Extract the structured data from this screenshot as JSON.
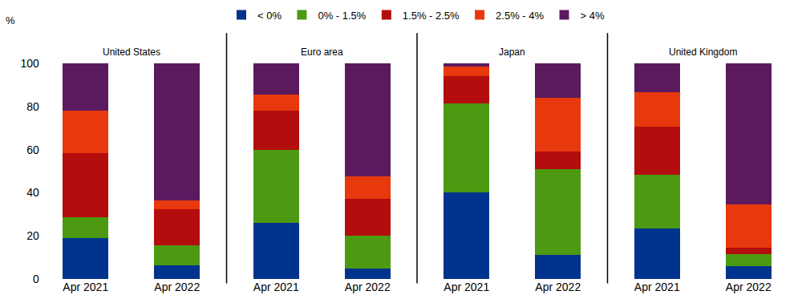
{
  "chart_data": [
    {
      "type": "bar",
      "title": "United States",
      "stacked": true,
      "grid": false,
      "legend": "top",
      "ylabel": "%",
      "ylim": [
        0,
        100
      ],
      "yticks": [
        0,
        20,
        40,
        60,
        80,
        100
      ],
      "tick_labels": true,
      "categories": [
        "Apr 2021",
        "Apr 2022"
      ],
      "series": [
        {
          "name": "< 0%",
          "color": "#00338d",
          "values": [
            19,
            6.5
          ]
        },
        {
          "name": "0% - 1.5%",
          "color": "#4d9a12",
          "values": [
            9.5,
            9
          ]
        },
        {
          "name": "1.5% - 2.5%",
          "color": "#b30d0d",
          "values": [
            30,
            17
          ]
        },
        {
          "name": "2.5% - 4%",
          "color": "#e8380d",
          "values": [
            19.5,
            4
          ]
        },
        {
          "name": "> 4%",
          "color": "#5b1a5e",
          "values": [
            22,
            63.5
          ]
        }
      ]
    },
    {
      "type": "bar",
      "title": "Euro area",
      "stacked": true,
      "grid": false,
      "ylim": [
        0,
        100
      ],
      "tick_labels": "x",
      "categories": [
        "Apr 2021",
        "Apr 2022"
      ],
      "series": [
        {
          "name": "< 0%",
          "color": "#00338d",
          "values": [
            26,
            5
          ]
        },
        {
          "name": "0% - 1.5%",
          "color": "#4d9a12",
          "values": [
            34,
            15
          ]
        },
        {
          "name": "1.5% - 2.5%",
          "color": "#b30d0d",
          "values": [
            18,
            17
          ]
        },
        {
          "name": "2.5% - 4%",
          "color": "#e8380d",
          "values": [
            7.5,
            10.5
          ]
        },
        {
          "name": "> 4%",
          "color": "#5b1a5e",
          "values": [
            14.5,
            52.5
          ]
        }
      ]
    },
    {
      "type": "bar",
      "title": "Japan",
      "stacked": true,
      "grid": false,
      "ylim": [
        0,
        100
      ],
      "tick_labels": "x",
      "categories": [
        "Apr 2021",
        "Apr 2022"
      ],
      "series": [
        {
          "name": "< 0%",
          "color": "#00338d",
          "values": [
            40,
            11
          ]
        },
        {
          "name": "0% - 1.5%",
          "color": "#4d9a12",
          "values": [
            41.5,
            40
          ]
        },
        {
          "name": "1.5% - 2.5%",
          "color": "#b30d0d",
          "values": [
            12.5,
            8
          ]
        },
        {
          "name": "2.5% - 4%",
          "color": "#e8380d",
          "values": [
            4.5,
            25
          ]
        },
        {
          "name": "> 4%",
          "color": "#5b1a5e",
          "values": [
            1.5,
            16
          ]
        }
      ]
    },
    {
      "type": "bar",
      "title": "United Kingdom",
      "stacked": true,
      "grid": false,
      "ylim": [
        0,
        100
      ],
      "tick_labels": "x",
      "categories": [
        "Apr 2021",
        "Apr 2022"
      ],
      "series": [
        {
          "name": "< 0%",
          "color": "#00338d",
          "values": [
            23.5,
            6
          ]
        },
        {
          "name": "0% - 1.5%",
          "color": "#4d9a12",
          "values": [
            25,
            5.5
          ]
        },
        {
          "name": "1.5% - 2.5%",
          "color": "#b30d0d",
          "values": [
            22,
            3
          ]
        },
        {
          "name": "2.5% - 4%",
          "color": "#e8380d",
          "values": [
            16,
            20
          ]
        },
        {
          "name": "> 4%",
          "color": "#5b1a5e",
          "values": [
            13.5,
            65.5
          ]
        }
      ]
    }
  ]
}
